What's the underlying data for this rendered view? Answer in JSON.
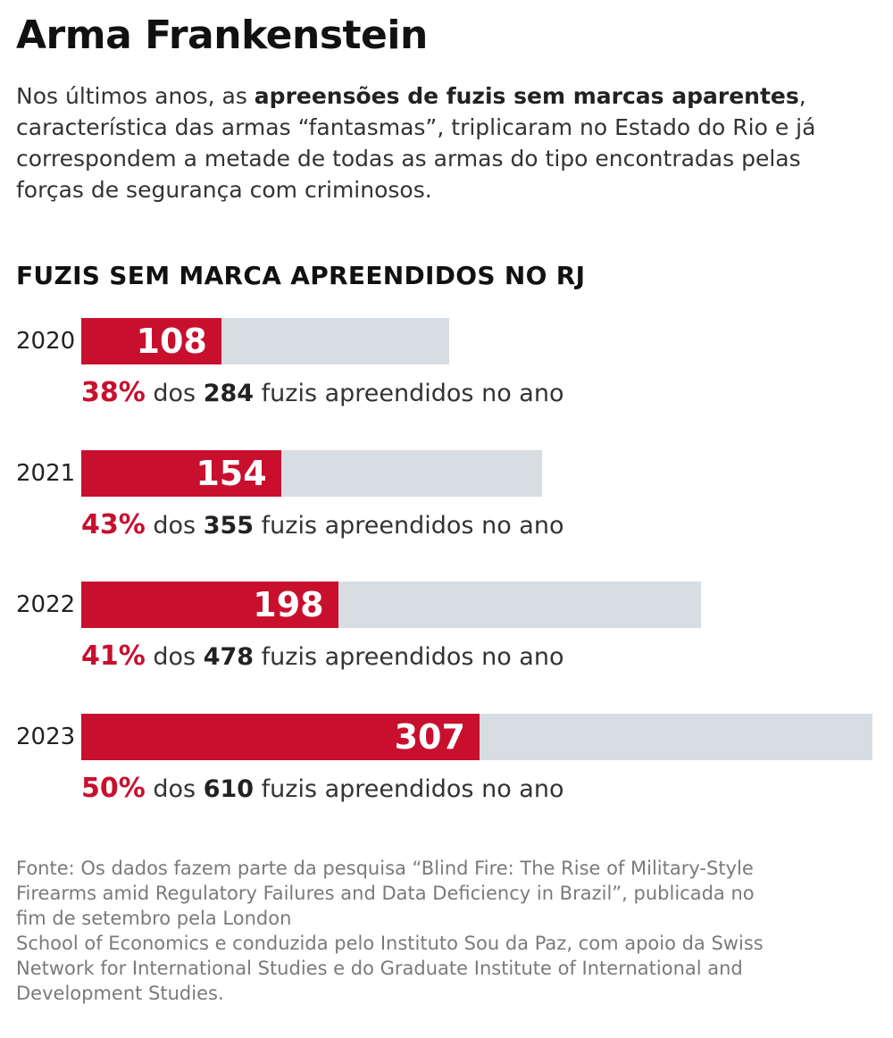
{
  "header": {
    "title": "Arma Frankenstein",
    "intro_before": "Nos últimos anos, as ",
    "intro_bold": "apreensões de fuzis sem marcas aparentes",
    "intro_after": ", característica das armas “fantasmas”, triplicaram no Estado do Rio e já correspondem a metade de todas as armas do tipo encontradas pelas forças de segurança com criminosos."
  },
  "chart_data": {
    "type": "bar",
    "title": "FUZIS SEM MARCA APREENDIDOS NO RJ",
    "categories": [
      "2020",
      "2021",
      "2022",
      "2023"
    ],
    "series": [
      {
        "name": "Fuzis sem marca apreendidos",
        "values": [
          108,
          154,
          198,
          307
        ]
      },
      {
        "name": "Total de fuzis apreendidos no ano",
        "values": [
          284,
          355,
          478,
          610
        ]
      }
    ],
    "percent_labels": [
      "38%",
      "43%",
      "41%",
      "50%"
    ],
    "sub_label_middle": " dos ",
    "sub_label_suffix": " fuzis apreendidos no ano",
    "xlim": [
      0,
      610
    ],
    "orientation": "horizontal",
    "colors": {
      "unmarked": "#c8102e",
      "total": "#d7dde3"
    }
  },
  "footer": {
    "source_lines": [
      "Fonte: Os dados fazem parte da pesquisa “Blind Fire: The Rise of Military-Style",
      "Firearms amid Regulatory Failures and Data Deficiency in Brazil”, publicada no",
      "fim de setembro pela London",
      "School of Economics e conduzida pelo Instituto Sou da Paz, com apoio da Swiss",
      "Network for International Studies e do Graduate Institute of International and",
      "Development Studies."
    ]
  }
}
